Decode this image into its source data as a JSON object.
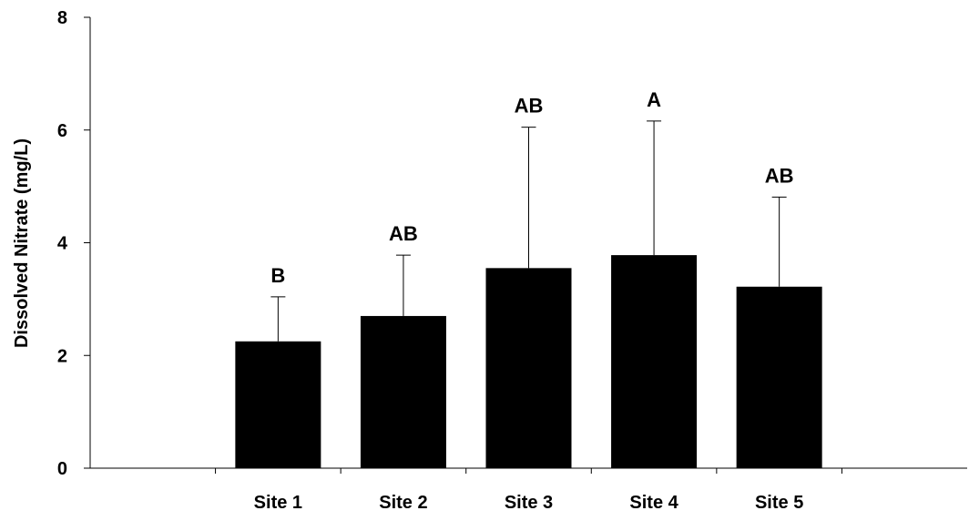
{
  "chart_data": {
    "type": "bar",
    "title": "",
    "xlabel": "",
    "ylabel": "Dissolved Nitrate (mg/L)",
    "ylim": [
      0,
      8
    ],
    "yticks": [
      "0",
      "2",
      "4",
      "6",
      "8"
    ],
    "grid": false,
    "legend": "none",
    "bar_color": "#000000",
    "categories": [
      "Site 1",
      "Site 2",
      "Site 3",
      "Site 4",
      "Site 5"
    ],
    "values": [
      2.25,
      2.7,
      3.55,
      3.78,
      3.22
    ],
    "error_upper": [
      3.04,
      3.78,
      6.05,
      6.16,
      4.81
    ],
    "significance_labels": [
      "B",
      "AB",
      "AB",
      "A",
      "AB"
    ]
  }
}
